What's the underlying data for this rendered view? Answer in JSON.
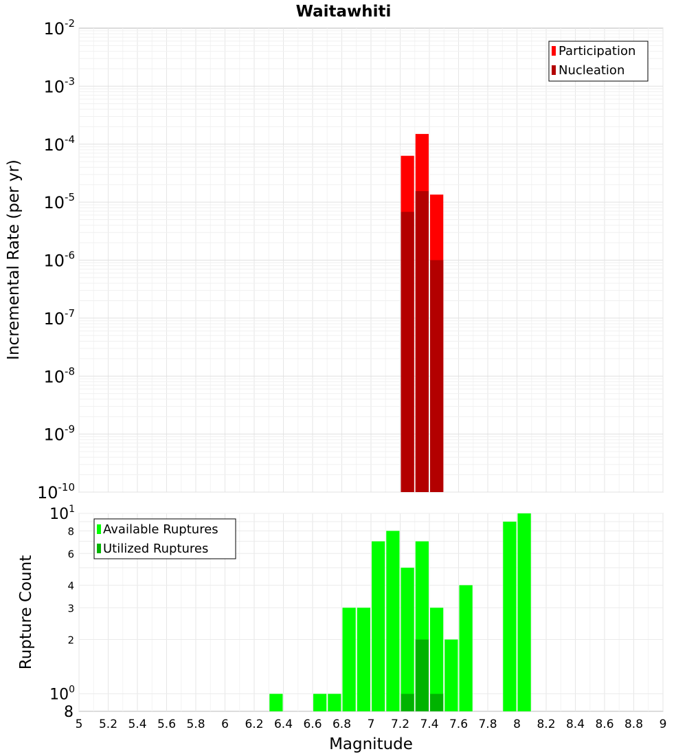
{
  "chart_data": [
    {
      "type": "bar",
      "title": "Waitawhiti",
      "ylabel": "Incremental Rate (per yr)",
      "yscale": "log",
      "ylim": [
        1e-10,
        0.01
      ],
      "xlim": [
        5,
        9
      ],
      "y_tick_labels": [
        {
          "value": 0.01,
          "base": "10",
          "exp": "-2"
        },
        {
          "value": 0.001,
          "base": "10",
          "exp": "-3"
        },
        {
          "value": 0.0001,
          "base": "10",
          "exp": "-4"
        },
        {
          "value": 1e-05,
          "base": "10",
          "exp": "-5"
        },
        {
          "value": 1e-06,
          "base": "10",
          "exp": "-6"
        },
        {
          "value": 1e-07,
          "base": "10",
          "exp": "-7"
        },
        {
          "value": 1e-08,
          "base": "10",
          "exp": "-8"
        },
        {
          "value": 1e-09,
          "base": "10",
          "exp": "-9"
        },
        {
          "value": 1e-10,
          "base": "10",
          "exp": "-10"
        }
      ],
      "legend": {
        "position": "top-right",
        "entries": [
          "Participation",
          "Nucleation"
        ]
      },
      "series": [
        {
          "name": "Participation",
          "color": "#ff0000",
          "x": [
            7.25,
            7.35,
            7.45
          ],
          "values": [
            6.3e-05,
            0.00015,
            1.35e-05
          ]
        },
        {
          "name": "Nucleation",
          "color": "#b30000",
          "x": [
            7.25,
            7.35,
            7.45
          ],
          "values": [
            6.8e-06,
            1.55e-05,
            1e-06
          ]
        }
      ],
      "grid": true
    },
    {
      "type": "bar",
      "ylabel": "Rupture Count",
      "xlabel": "Magnitude",
      "yscale": "log",
      "ylim": [
        0.8,
        10
      ],
      "xlim": [
        5,
        9
      ],
      "x_tick_labels": [
        "5",
        "5.2",
        "5.4",
        "5.6",
        "5.8",
        "6",
        "6.2",
        "6.4",
        "6.6",
        "6.8",
        "7",
        "7.2",
        "7.4",
        "7.6",
        "7.8",
        "8",
        "8.2",
        "8.4",
        "8.6",
        "8.8",
        "9"
      ],
      "y_tick_labels": [
        {
          "value": 10,
          "base": "10",
          "exp": "1"
        },
        {
          "value": 8,
          "label": "8"
        },
        {
          "value": 6,
          "label": "6"
        },
        {
          "value": 4,
          "label": "4"
        },
        {
          "value": 3,
          "label": "3"
        },
        {
          "value": 2,
          "label": "2"
        },
        {
          "value": 1,
          "base": "10",
          "exp": "0"
        },
        {
          "value": 0.8,
          "label": "8"
        }
      ],
      "legend": {
        "position": "top-left",
        "entries": [
          "Available Ruptures",
          "Utilized Ruptures"
        ]
      },
      "series": [
        {
          "name": "Available Ruptures",
          "color": "#00ff00",
          "x": [
            6.35,
            6.65,
            6.75,
            6.85,
            6.95,
            7.05,
            7.15,
            7.25,
            7.35,
            7.45,
            7.55,
            7.65,
            7.95,
            8.05
          ],
          "values": [
            1,
            1,
            1,
            3,
            3,
            7,
            8,
            5,
            7,
            3,
            2,
            4,
            9,
            10
          ]
        },
        {
          "name": "Utilized Ruptures",
          "color": "#00b300",
          "x": [
            7.25,
            7.35,
            7.45
          ],
          "values": [
            1,
            2,
            1
          ]
        }
      ],
      "grid": true
    }
  ]
}
